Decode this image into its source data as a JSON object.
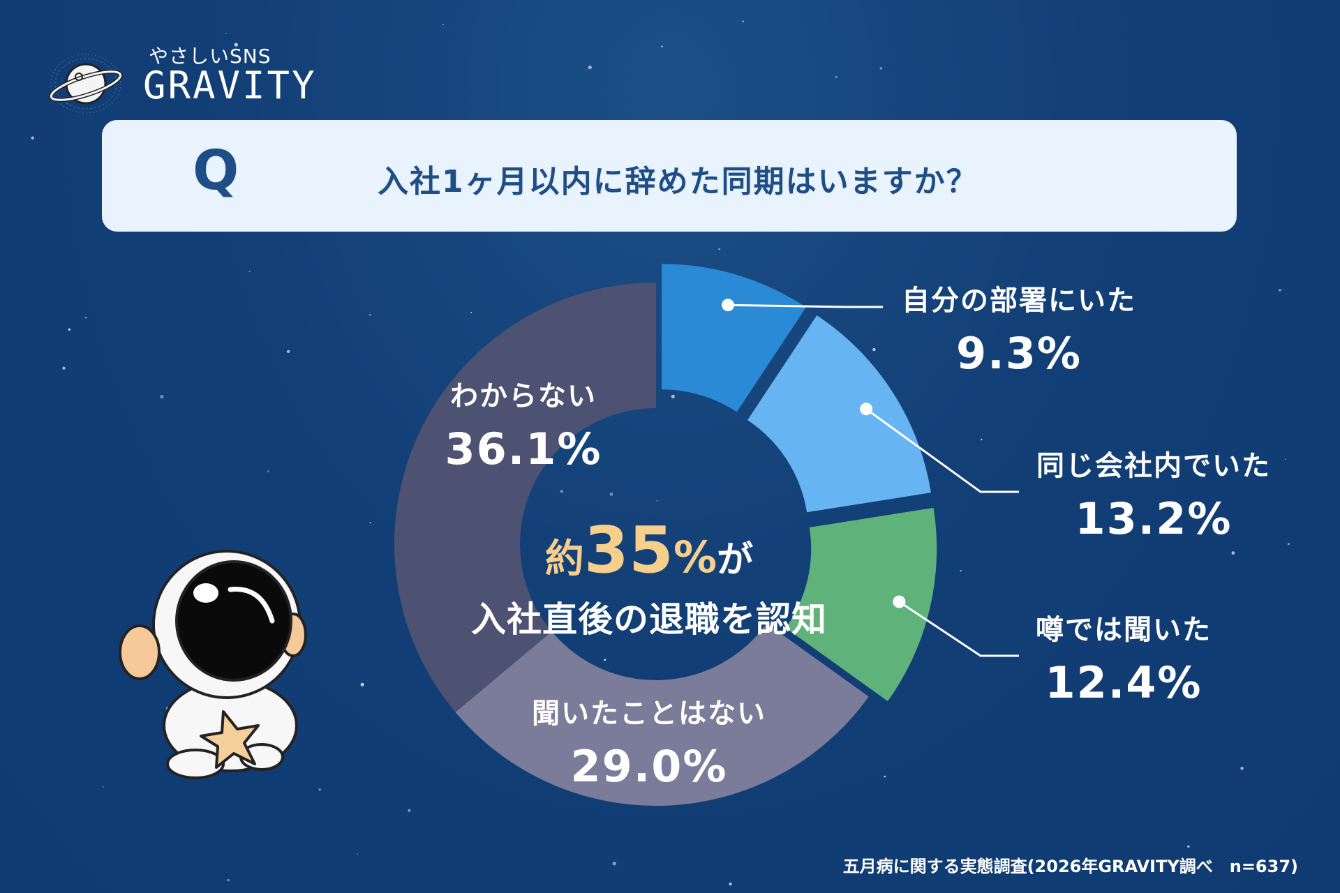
{
  "brand": {
    "sub": "やさしいSNS",
    "name": "GRAVITY"
  },
  "question": {
    "mark": "Q",
    "text": "入社1ヶ月以内に辞めた同期はいますか？"
  },
  "center": {
    "prefix": "約",
    "number": "35",
    "percent": "%",
    "suffix": "が",
    "line2": "入社直後の退職を認知"
  },
  "footer": "五月病に関する実態調査(2026年GRAVITY調べ　n=637)",
  "colors": {
    "bg": "#123f76",
    "slice1": "#2b8ad6",
    "slice2": "#66b4f2",
    "slice3": "#5fb27a",
    "slice4": "#7b7c9a",
    "slice5": "#4d5273",
    "accent": "#f6cf8c"
  },
  "chart_data": {
    "type": "pie",
    "donut": true,
    "categories": [
      "自分の部署にいた",
      "同じ会社内でいた",
      "噂では聞いた",
      "聞いたことはない",
      "わからない"
    ],
    "values": [
      9.3,
      13.2,
      12.4,
      29.0,
      36.1
    ],
    "value_labels": [
      "9.3%",
      "13.2%",
      "12.4%",
      "29.0%",
      "36.1%"
    ],
    "highlighted_slices": [
      0,
      1,
      2
    ]
  }
}
